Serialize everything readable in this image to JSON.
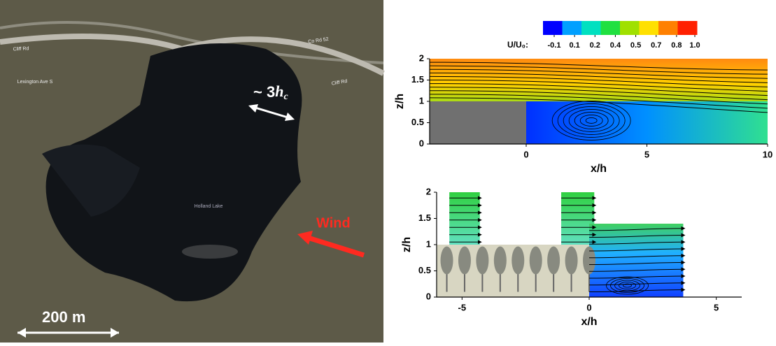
{
  "photo": {
    "labels": [
      "Co Rd 52",
      "Cliff Rd",
      "Cliff Rd",
      "Lexington Ave S",
      "Holland Lake"
    ],
    "spacing": {
      "text": "~ 3",
      "var": "h",
      "sub": "c"
    },
    "wind": "Wind",
    "scale": "200 m"
  },
  "chart_data": [
    {
      "type": "streamline",
      "xlabel": "x/h",
      "ylabel": "z/h",
      "xlim": [
        -4,
        10
      ],
      "xticks": [
        0,
        5,
        10
      ],
      "ylim": [
        0,
        2
      ],
      "yticks": [
        0,
        0.5,
        1,
        1.5,
        2
      ],
      "colorbar": {
        "label": "U/U₀:",
        "colors": [
          "#0000ff",
          "#00a0ff",
          "#00e0c0",
          "#20e040",
          "#a0e000",
          "#ffe000",
          "#ff8000",
          "#ff2000"
        ],
        "ticks": [
          -0.1,
          0.1,
          0.2,
          0.4,
          0.5,
          0.7,
          0.8,
          {
            "value": 1,
            "label": "1.0"
          }
        ]
      }
    },
    {
      "type": "streamline",
      "xlabel": "x/h",
      "ylabel": "z/h",
      "xlim": [
        -6,
        6
      ],
      "xticks": [
        -5,
        0,
        5
      ],
      "ylim": [
        0,
        2
      ],
      "yticks": [
        0,
        0.5,
        1,
        1.5,
        2
      ]
    }
  ]
}
